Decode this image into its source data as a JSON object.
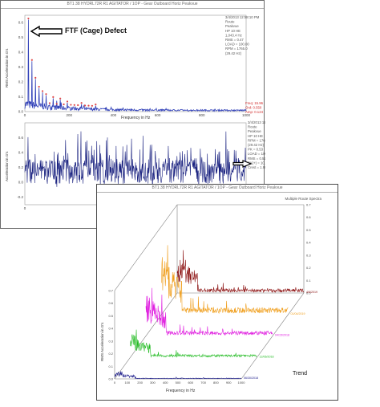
{
  "window1": {
    "title": "BT1 38 HYDRL72R R1 AGITATOR / 1OP - Gear Outboard Horiz Peakvue"
  },
  "window2": {
    "title": "BT1 38 HYDRL72R R1 AGITATOR / 1OP - Gear Outboard Horiz Peakvue",
    "subtitle": "Multiple Route Spectra"
  },
  "annotations": {
    "ftf": "FTF (Cage) Defect",
    "trend": "Trend"
  },
  "info_spectrum": [
    "3/4/2013 12:58:10 PM",
    "Route",
    "Peakvue",
    "HP 10 HE",
    "1,043.4 Hz",
    "RMS = 0.47",
    "LOAD = 100.00",
    "RPM = 1765.0",
    "(29.42 Hz)"
  ],
  "info_waveform": [
    "3/4/2013 12:54:12 PM",
    "Route",
    "Peakvue",
    "HP 10 HE",
    "RPM = 1765.0",
    "(29.42 Hz)",
    "PK = 0.53",
    "LOAD = 100.00",
    "RMS = 0.524",
    "PK(+) = 10.97",
    "Crest = 1.982"
  ],
  "cursor_readout": [
    "Freq: 15.96",
    "Ord: 0.550",
    "Amp: 0.124"
  ],
  "colors": {
    "spectrum": "#2f3fb8",
    "waveform": "#1a2280",
    "marker": "#e04848",
    "waterfall": [
      "#1a1a8a",
      "#22bb22",
      "#e020e0",
      "#f0a020",
      "#8b1010"
    ]
  },
  "chart_data": [
    {
      "type": "line",
      "name": "spectrum",
      "title": "",
      "xlabel": "Frequency in Hz",
      "ylabel": "RMS Acceleration in G's",
      "xlim": [
        0,
        1000
      ],
      "ylim": [
        0,
        0.65
      ],
      "xticks": [
        "0",
        "200",
        "400",
        "600",
        "800",
        "1000"
      ],
      "yticks": [
        "0.0",
        "0.1",
        "0.2",
        "0.3",
        "0.4",
        "0.5",
        "0.6"
      ],
      "peaks": [
        {
          "x": 16,
          "y": 0.62
        },
        {
          "x": 32,
          "y": 0.34
        },
        {
          "x": 48,
          "y": 0.22
        },
        {
          "x": 64,
          "y": 0.16
        },
        {
          "x": 80,
          "y": 0.13
        },
        {
          "x": 96,
          "y": 0.11
        },
        {
          "x": 128,
          "y": 0.09
        },
        {
          "x": 160,
          "y": 0.08
        },
        {
          "x": 192,
          "y": 0.06
        },
        {
          "x": 256,
          "y": 0.05
        },
        {
          "x": 320,
          "y": 0.04
        }
      ],
      "markers_x": [
        16,
        32,
        48,
        64,
        80,
        96,
        112,
        128,
        144,
        160,
        176,
        192,
        208,
        224,
        240,
        256,
        272,
        288,
        304,
        320
      ]
    },
    {
      "type": "line",
      "name": "waveform",
      "title": "",
      "xlabel": "",
      "ylabel": "Acceleration in G's",
      "xlim": [
        0,
        18
      ],
      "ylim": [
        -0.3,
        0.8
      ],
      "xticks": [
        "0",
        "12"
      ],
      "yticks": [
        "-0.2",
        "0.0",
        "0.2",
        "0.4",
        "0.6"
      ]
    },
    {
      "type": "line",
      "name": "waterfall",
      "title": "Multiple Route Spectra",
      "xlabel": "Frequency in Hz",
      "ylabel": "RMS Acceleration in G's",
      "xlim": [
        0,
        1000
      ],
      "ylim": [
        0,
        0.7
      ],
      "xticks": [
        "0",
        "100",
        "200",
        "300",
        "400",
        "500",
        "600",
        "700",
        "800",
        "900",
        "1000"
      ],
      "yticks": [
        "0.0",
        "0.1",
        "0.2",
        "0.3",
        "0.4",
        "0.5",
        "0.6",
        "0.7"
      ],
      "series": [
        {
          "date_label": "06/30/2018",
          "peak": 0.06
        },
        {
          "date_label": "12/06/2018",
          "peak": 0.22
        },
        {
          "date_label": "04/15/2018",
          "peak": 0.38
        },
        {
          "date_label": "01/04/2019",
          "peak": 0.55
        },
        {
          "date_label": "4/6/2019",
          "peak": 0.34
        }
      ]
    }
  ]
}
